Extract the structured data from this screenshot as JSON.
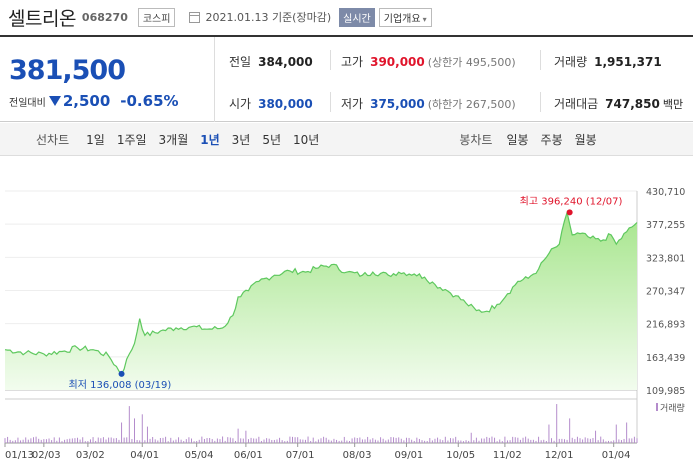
{
  "header": {
    "stock_name": "셀트리온",
    "stock_code": "068270",
    "market": "코스피",
    "date_text": "2021.01.13 기준(장마감)",
    "realtime_label": "실시간",
    "company_info_label": "기업개요"
  },
  "quote": {
    "price": "381,500",
    "change_label": "전일대비",
    "change_value": "2,500",
    "change_pct": "-0.65%",
    "prev_close_label": "전일",
    "prev_close": "384,000",
    "high_label": "고가",
    "high": "390,000",
    "upper_limit": "(상한가 495,500)",
    "volume_label": "거래량",
    "volume": "1,951,371",
    "open_label": "시가",
    "open": "380,000",
    "low_label": "저가",
    "low": "375,000",
    "lower_limit": "(하한가 267,500)",
    "amount_label": "거래대금",
    "amount": "747,850",
    "amount_unit": "백만",
    "down_color": "#1a4fb5",
    "up_color": "#e0142b"
  },
  "tabs": {
    "line_title": "선차트",
    "line_periods": [
      "1일",
      "1주일",
      "3개월",
      "1년",
      "3년",
      "5년",
      "10년"
    ],
    "active_period": "1년",
    "candle_title": "봉차트",
    "candle_periods": [
      "일봉",
      "주봉",
      "월봉"
    ]
  },
  "chart_data": {
    "type": "area",
    "y_ticks": [
      "430,710",
      "377,255",
      "323,801",
      "270,347",
      "216,893",
      "163,439",
      "109,985"
    ],
    "ylim": [
      109985,
      430710
    ],
    "x_ticks": [
      "01/13",
      "02/03",
      "03/02",
      "04/01",
      "05/04",
      "06/01",
      "07/01",
      "08/03",
      "09/01",
      "10/05",
      "11/02",
      "12/01",
      "01/04"
    ],
    "x_tick_index": [
      0,
      15,
      32,
      53,
      74,
      93,
      113,
      135,
      155,
      175,
      193,
      213,
      235
    ],
    "high_annotation": "최고 396,240 (12/07)",
    "high_index": 218,
    "low_annotation": "최저 136,008 (03/19)",
    "low_index": 45,
    "volume_legend": "거래량",
    "line_color": "#5ec85e",
    "fill_color": "#c8f0b4",
    "volume_color": "#b48ccc",
    "price_keypoints": [
      [
        0,
        175000
      ],
      [
        8,
        170000
      ],
      [
        15,
        168000
      ],
      [
        22,
        172000
      ],
      [
        28,
        178000
      ],
      [
        34,
        175000
      ],
      [
        40,
        165000
      ],
      [
        45,
        136008
      ],
      [
        48,
        168000
      ],
      [
        50,
        185000
      ],
      [
        52,
        225000
      ],
      [
        54,
        198000
      ],
      [
        60,
        205000
      ],
      [
        66,
        210000
      ],
      [
        72,
        212000
      ],
      [
        78,
        208000
      ],
      [
        84,
        210000
      ],
      [
        88,
        230000
      ],
      [
        90,
        260000
      ],
      [
        94,
        270000
      ],
      [
        98,
        285000
      ],
      [
        104,
        295000
      ],
      [
        110,
        302000
      ],
      [
        116,
        300000
      ],
      [
        120,
        306000
      ],
      [
        126,
        312000
      ],
      [
        132,
        300000
      ],
      [
        138,
        295000
      ],
      [
        142,
        300000
      ],
      [
        148,
        295000
      ],
      [
        152,
        300000
      ],
      [
        158,
        297000
      ],
      [
        162,
        292000
      ],
      [
        166,
        280000
      ],
      [
        170,
        272000
      ],
      [
        174,
        262000
      ],
      [
        178,
        250000
      ],
      [
        182,
        238000
      ],
      [
        186,
        237000
      ],
      [
        190,
        248000
      ],
      [
        194,
        265000
      ],
      [
        198,
        285000
      ],
      [
        202,
        290000
      ],
      [
        206,
        305000
      ],
      [
        210,
        330000
      ],
      [
        214,
        345000
      ],
      [
        217,
        396240
      ],
      [
        219,
        360000
      ],
      [
        222,
        362000
      ],
      [
        226,
        355000
      ],
      [
        230,
        350000
      ],
      [
        234,
        360000
      ],
      [
        236,
        345000
      ],
      [
        240,
        365000
      ],
      [
        244,
        380000
      ]
    ],
    "volume_spikes": [
      [
        45,
        0.5
      ],
      [
        48,
        0.9
      ],
      [
        50,
        0.6
      ],
      [
        53,
        0.7
      ],
      [
        55,
        0.4
      ],
      [
        90,
        0.35
      ],
      [
        93,
        0.3
      ],
      [
        180,
        0.25
      ],
      [
        210,
        0.45
      ],
      [
        213,
        0.95
      ],
      [
        218,
        0.6
      ],
      [
        228,
        0.3
      ],
      [
        236,
        0.45
      ],
      [
        240,
        0.5
      ]
    ]
  }
}
